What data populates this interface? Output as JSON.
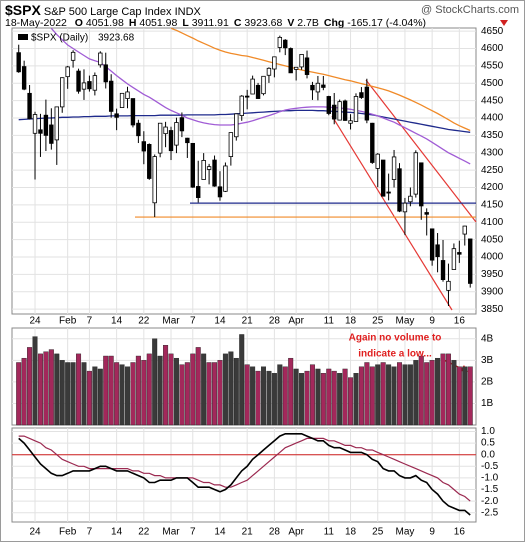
{
  "header": {
    "symbol": "$SPX",
    "name": "S&P 500 Large Cap Index",
    "exchange": "INDX",
    "source": "@ StockCharts.com",
    "date": "18-May-2022",
    "quote": [
      {
        "label": "O",
        "value": 4051.98
      },
      {
        "label": "H",
        "value": 4051.98
      },
      {
        "label": "L",
        "value": 3911.91
      },
      {
        "label": "C",
        "value": 3923.68
      },
      {
        "label": "V",
        "value": "2.7B"
      },
      {
        "label": "Chg",
        "value": "-165.17 (-4.04%)"
      }
    ]
  },
  "chart_data": [
    {
      "type": "candlestick",
      "legend": {
        "label": "$SPX (Daily)",
        "last": 3923.68
      },
      "categories": [
        null,
        null,
        null,
        "24",
        null,
        null,
        null,
        null,
        null,
        "Feb",
        null,
        null,
        null,
        "7",
        null,
        null,
        null,
        null,
        "14",
        null,
        null,
        null,
        null,
        "22",
        null,
        null,
        null,
        null,
        "Mar",
        null,
        null,
        null,
        "7",
        null,
        null,
        null,
        null,
        "14",
        null,
        null,
        null,
        null,
        "21",
        null,
        null,
        null,
        null,
        "28",
        null,
        null,
        null,
        "Apr",
        null,
        null,
        null,
        null,
        null,
        "11",
        null,
        null,
        null,
        "18",
        null,
        null,
        null,
        null,
        "25",
        null,
        null,
        null,
        null,
        "May",
        null,
        null,
        null,
        null,
        "9",
        null,
        null,
        null,
        null,
        "16",
        null,
        null
      ],
      "open": [
        4588,
        4548,
        4471,
        4356,
        4366,
        4408,
        4380,
        4337,
        4432,
        4519,
        4566,
        4535,
        4483,
        4505,
        4480,
        4553,
        4553,
        4506,
        4412,
        4430,
        4456,
        4456,
        4385,
        4332,
        4324,
        4156,
        4299,
        4355,
        4364,
        4322,
        4401,
        4342,
        4327,
        4203,
        4223,
        4252,
        4279,
        4202,
        4189,
        4289,
        4346,
        4407,
        4463,
        4469,
        4494,
        4470,
        4523,
        4541,
        4603,
        4624,
        4600,
        4540,
        4547,
        4573,
        4494,
        4475,
        4495,
        4462,
        4437,
        4394,
        4449,
        4385,
        4390,
        4473,
        4489,
        4385,
        4255,
        4279,
        4187,
        4223,
        4254,
        4130,
        4159,
        4181,
        4271,
        4128,
        4081,
        4035,
        3990,
        3904,
        3964,
        4013,
        4066,
        4052
      ],
      "high": [
        4611,
        4565,
        4495,
        4418,
        4412,
        4453,
        4428,
        4432,
        4517,
        4550,
        4595,
        4542,
        4540,
        4522,
        4531,
        4592,
        4588,
        4526,
        4427,
        4472,
        4490,
        4456,
        4395,
        4362,
        4327,
        4295,
        4385,
        4389,
        4375,
        4401,
        4416,
        4343,
        4328,
        4277,
        4299,
        4268,
        4292,
        4247,
        4272,
        4358,
        4412,
        4466,
        4481,
        4522,
        4501,
        4521,
        4546,
        4576,
        4637,
        4627,
        4603,
        4546,
        4583,
        4594,
        4504,
        4521,
        4521,
        4464,
        4472,
        4453,
        4453,
        4411,
        4471,
        4489,
        4513,
        4386,
        4299,
        4279,
        4240,
        4308,
        4270,
        4170,
        4200,
        4307,
        4271,
        4140,
        4082,
        4069,
        4049,
        3981,
        4039,
        4047,
        4090,
        4052
      ],
      "low": [
        4530,
        4480,
        4396,
        4223,
        4288,
        4305,
        4309,
        4265,
        4415,
        4484,
        4545,
        4470,
        4452,
        4476,
        4465,
        4545,
        4485,
        4401,
        4365,
        4430,
        4428,
        4373,
        4328,
        4267,
        4222,
        4115,
        4287,
        4316,
        4279,
        4299,
        4345,
        4285,
        4199,
        4157,
        4223,
        4209,
        4202,
        4162,
        4187,
        4263,
        4335,
        4392,
        4425,
        4469,
        4455,
        4465,
        4501,
        4517,
        4589,
        4581,
        4530,
        4508,
        4539,
        4514,
        4452,
        4451,
        4480,
        4408,
        4382,
        4393,
        4392,
        4367,
        4390,
        4455,
        4385,
        4268,
        4201,
        4175,
        4163,
        4200,
        4129,
        4063,
        4146,
        4171,
        4107,
        4062,
        3975,
        3956,
        3929,
        3859,
        3964,
        3983,
        4033,
        3912
      ],
      "close": [
        4533,
        4483,
        4398,
        4410,
        4356,
        4350,
        4327,
        4432,
        4516,
        4547,
        4589,
        4477,
        4501,
        4484,
        4522,
        4587,
        4504,
        4419,
        4402,
        4471,
        4475,
        4380,
        4349,
        4305,
        4226,
        4289,
        4385,
        4374,
        4306,
        4387,
        4363,
        4329,
        4201,
        4171,
        4278,
        4260,
        4204,
        4173,
        4262,
        4358,
        4412,
        4463,
        4461,
        4512,
        4456,
        4520,
        4543,
        4576,
        4632,
        4602,
        4530,
        4546,
        4583,
        4525,
        4481,
        4500,
        4488,
        4413,
        4397,
        4447,
        4393,
        4392,
        4462,
        4459,
        4394,
        4272,
        4296,
        4175,
        4184,
        4288,
        4132,
        4155,
        4175,
        4300,
        4147,
        4123,
        3991,
        4001,
        3935,
        3930,
        4024,
        4008,
        4089,
        3924
      ],
      "lines": [
        {
          "color": "#1f2a8c",
          "values": [
            4395,
            4396,
            4397,
            4398,
            4399,
            4400,
            4400,
            4401,
            4402,
            4402,
            4403,
            4403,
            4404,
            4404,
            4405,
            4405,
            4405,
            4406,
            4406,
            4406,
            4406,
            4407,
            4407,
            4407,
            4407,
            4407,
            4408,
            4408,
            4408,
            4408,
            4408,
            4409,
            4409,
            4409,
            4409,
            4409,
            4409,
            4410,
            4410,
            4411,
            4412,
            4413,
            4414,
            4415,
            4416,
            4417,
            4418,
            4419,
            4420,
            4421,
            4421,
            4422,
            4422,
            4422,
            4422,
            4421,
            4421,
            4420,
            4419,
            4418,
            4417,
            4416,
            4415,
            4413,
            4411,
            4409,
            4406,
            4403,
            4400,
            4397,
            4394,
            4391,
            4388,
            4385,
            4382,
            4379,
            4376,
            4373,
            4370,
            4367,
            4365,
            4363,
            4361,
            4359
          ]
        },
        {
          "color": "#a05cd5",
          "values": [
            null,
            null,
            null,
            null,
            null,
            null,
            4658,
            4640,
            4625,
            4610,
            4600,
            4590,
            4580,
            4570,
            4565,
            4560,
            4548,
            4535,
            4522,
            4510,
            4498,
            4488,
            4478,
            4468,
            4460,
            4450,
            4440,
            4430,
            4422,
            4415,
            4408,
            4400,
            4395,
            4390,
            4386,
            4383,
            4381,
            4380,
            4380,
            4380,
            4382,
            4385,
            4388,
            4392,
            4397,
            4402,
            4407,
            4412,
            4418,
            4423,
            4426,
            4428,
            4430,
            4431,
            4432,
            4432,
            4432,
            4431,
            4430,
            4429,
            4427,
            4425,
            4422,
            4419,
            4415,
            4411,
            4406,
            4400,
            4394,
            4388,
            4380,
            4372,
            4364,
            4356,
            4348,
            4340,
            4330,
            4320,
            4310,
            4300,
            4292,
            4284,
            4276,
            4268
          ]
        },
        {
          "color": "#f08a28",
          "values": [
            null,
            null,
            null,
            null,
            null,
            null,
            null,
            null,
            null,
            null,
            null,
            null,
            null,
            null,
            null,
            null,
            null,
            null,
            null,
            null,
            null,
            null,
            null,
            null,
            null,
            null,
            null,
            null,
            4658,
            4652,
            4645,
            4637,
            4630,
            4622,
            4615,
            4608,
            4601,
            4595,
            4590,
            4586,
            4583,
            4580,
            4578,
            4574,
            4570,
            4566,
            4562,
            4558,
            4554,
            4550,
            4546,
            4542,
            4538,
            4535,
            4532,
            4529,
            4526,
            4522,
            4518,
            4514,
            4510,
            4507,
            4503,
            4499,
            4495,
            4491,
            4487,
            4483,
            4478,
            4472,
            4466,
            4459,
            4452,
            4445,
            4437,
            4429,
            4421,
            4413,
            4404,
            4395,
            4386,
            4378,
            4371,
            4364
          ]
        }
      ],
      "levels": [
        {
          "value": 4155,
          "color": "#1f2a8c"
        },
        {
          "value": 4115,
          "color": "#f08a28"
        }
      ],
      "ylim": [
        3836,
        4659
      ],
      "yticks": [
        3850,
        3900,
        3950,
        4000,
        4050,
        4100,
        4150,
        4200,
        4250,
        4300,
        4350,
        4400,
        4450,
        4500,
        4550,
        4600,
        4650
      ],
      "grid": true,
      "up_color": "#ffffff",
      "down_color": "#000000"
    },
    {
      "type": "bar",
      "values": [
        2.9,
        3.1,
        3.6,
        4.1,
        3.3,
        3.4,
        3.5,
        3.3,
        3.0,
        2.9,
        2.9,
        3.3,
        2.9,
        2.5,
        2.7,
        2.6,
        3.2,
        3.2,
        2.9,
        2.8,
        2.7,
        2.9,
        3.2,
        3.0,
        3.3,
        4.0,
        3.2,
        3.7,
        3.3,
        3.1,
        2.8,
        2.9,
        3.3,
        3.6,
        3.3,
        2.9,
        2.9,
        3.0,
        3.3,
        3.4,
        3.1,
        4.2,
        2.8,
        2.7,
        2.5,
        2.7,
        2.5,
        2.4,
        2.8,
        2.7,
        3.1,
        2.6,
        2.4,
        2.5,
        2.8,
        2.6,
        2.4,
        2.6,
        2.5,
        2.4,
        2.6,
        2.2,
        2.4,
        2.7,
        2.9,
        2.7,
        2.8,
        2.9,
        2.8,
        2.7,
        2.9,
        2.8,
        2.8,
        3.0,
        3.2,
        2.9,
        3.0,
        3.1,
        3.3,
        3.3,
        3.0,
        2.7,
        2.7,
        2.7
      ],
      "ylim": [
        0,
        4.5
      ],
      "yticks": [
        {
          "value": 1,
          "label": "1B"
        },
        {
          "value": 2,
          "label": "2B"
        },
        {
          "value": 3,
          "label": "3B"
        },
        {
          "value": 4,
          "label": "4B"
        }
      ],
      "grid": true,
      "up_color": "#3a3a3a",
      "down_color": "#a3285b",
      "annotations": [
        "Again no volume to",
        "indicate a low..."
      ],
      "annotation_color": "#e02020"
    },
    {
      "type": "line",
      "categories": [
        null,
        null,
        null,
        "24",
        null,
        null,
        null,
        null,
        null,
        "Feb",
        null,
        null,
        null,
        "7",
        null,
        null,
        null,
        null,
        "14",
        null,
        null,
        null,
        null,
        "22",
        null,
        null,
        null,
        null,
        "Mar",
        null,
        null,
        null,
        "7",
        null,
        null,
        null,
        null,
        "14",
        null,
        null,
        null,
        null,
        "21",
        null,
        null,
        null,
        null,
        "28",
        null,
        null,
        null,
        "Apr",
        null,
        null,
        null,
        null,
        null,
        "11",
        null,
        null,
        null,
        "18",
        null,
        null,
        null,
        null,
        "25",
        null,
        null,
        null,
        null,
        "May",
        null,
        null,
        null,
        null,
        "9",
        null,
        null,
        null,
        null,
        "16",
        null,
        null
      ],
      "series": [
        {
          "color": "#000000",
          "values": [
            0.7,
            0.5,
            0.2,
            -0.1,
            -0.4,
            -0.6,
            -0.8,
            -0.9,
            -0.9,
            -0.8,
            -0.7,
            -0.7,
            -0.7,
            -0.7,
            -0.6,
            -0.5,
            -0.5,
            -0.6,
            -0.7,
            -0.7,
            -0.7,
            -0.8,
            -0.9,
            -1.0,
            -1.2,
            -1.2,
            -1.1,
            -1.1,
            -1.1,
            -1.0,
            -1.0,
            -1.0,
            -1.2,
            -1.4,
            -1.4,
            -1.4,
            -1.5,
            -1.6,
            -1.5,
            -1.3,
            -1.0,
            -0.7,
            -0.5,
            -0.2,
            0.0,
            0.2,
            0.4,
            0.6,
            0.8,
            0.9,
            0.9,
            0.9,
            0.9,
            0.8,
            0.7,
            0.6,
            0.6,
            0.4,
            0.3,
            0.3,
            0.2,
            0.1,
            0.1,
            0.1,
            0.0,
            -0.2,
            -0.3,
            -0.6,
            -0.7,
            -0.7,
            -0.9,
            -1.0,
            -1.0,
            -0.9,
            -1.1,
            -1.2,
            -1.5,
            -1.7,
            -2.0,
            -2.2,
            -2.3,
            -2.4,
            -2.4,
            -2.6
          ]
        },
        {
          "color": "#9b2950",
          "values": [
            0.8,
            0.8,
            0.7,
            0.6,
            0.5,
            0.3,
            0.2,
            0.0,
            -0.2,
            -0.3,
            -0.4,
            -0.5,
            -0.5,
            -0.6,
            -0.6,
            -0.6,
            -0.6,
            -0.6,
            -0.6,
            -0.6,
            -0.6,
            -0.7,
            -0.7,
            -0.8,
            -0.8,
            -0.9,
            -0.9,
            -1.0,
            -1.0,
            -1.0,
            -1.0,
            -1.0,
            -1.0,
            -1.1,
            -1.2,
            -1.2,
            -1.3,
            -1.3,
            -1.4,
            -1.4,
            -1.3,
            -1.2,
            -1.1,
            -0.9,
            -0.7,
            -0.5,
            -0.3,
            -0.1,
            0.1,
            0.3,
            0.4,
            0.5,
            0.6,
            0.7,
            0.7,
            0.7,
            0.7,
            0.6,
            0.6,
            0.5,
            0.4,
            0.4,
            0.3,
            0.3,
            0.2,
            0.2,
            0.1,
            0.0,
            -0.1,
            -0.2,
            -0.3,
            -0.4,
            -0.5,
            -0.6,
            -0.7,
            -0.8,
            -0.9,
            -1.0,
            -1.2,
            -1.3,
            -1.5,
            -1.7,
            -1.8,
            -2.0
          ]
        }
      ],
      "zero_line": {
        "value": 0,
        "color": "#d02020"
      },
      "ylim": [
        -2.9,
        1.15
      ],
      "yticks": [
        {
          "value": 1,
          "label": "1.0"
        },
        0.5,
        {
          "value": 0,
          "label": "0.0"
        },
        -0.5,
        {
          "value": -1,
          "label": "-1.0"
        },
        -1.5,
        {
          "value": -2,
          "label": "-2.0"
        },
        -2.5
      ],
      "grid": true
    }
  ]
}
